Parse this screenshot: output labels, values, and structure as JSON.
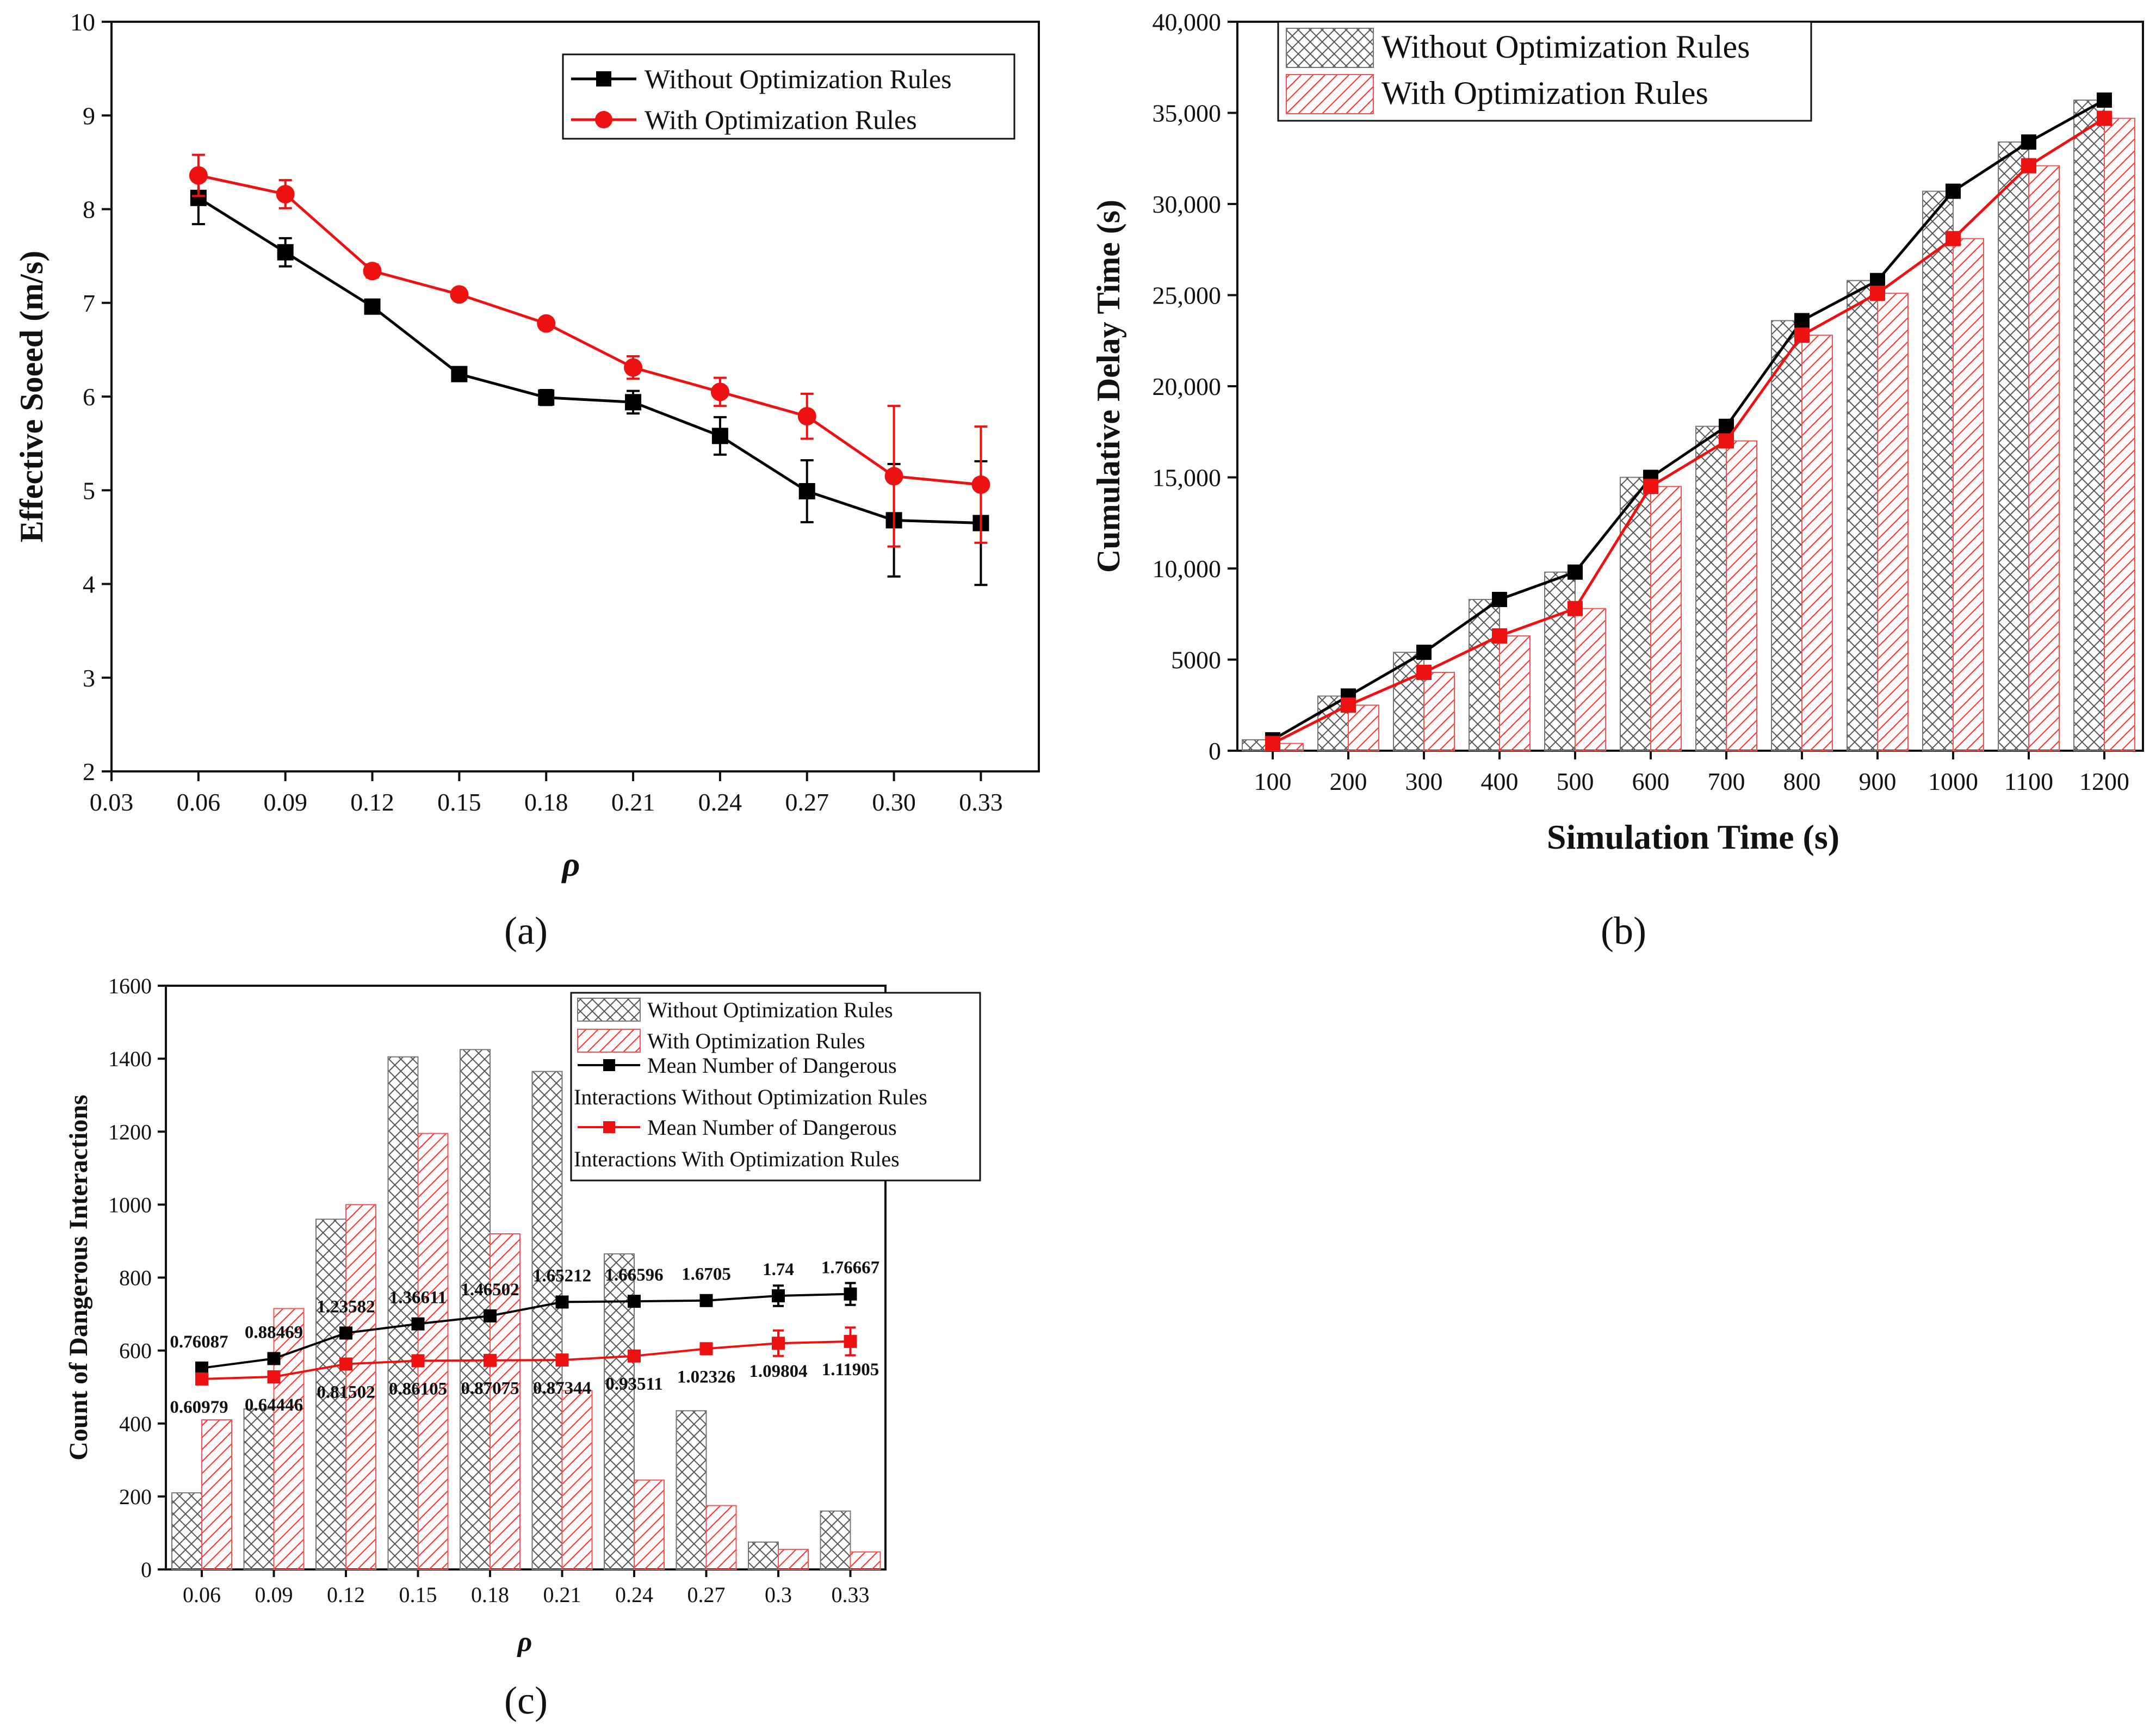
{
  "chart_data": [
    {
      "id": "a",
      "type": "line",
      "caption": "(a)",
      "xlabel": "ρ",
      "ylabel": "Effective Soeed (m/s)",
      "xlim": [
        0.03,
        0.35
      ],
      "ylim": [
        2,
        10
      ],
      "x_ticks": [
        "0.03",
        "0.06",
        "0.09",
        "0.12",
        "0.15",
        "0.18",
        "0.21",
        "0.24",
        "0.27",
        "0.30",
        "0.33"
      ],
      "y_ticks": [
        "2",
        "3",
        "4",
        "5",
        "6",
        "7",
        "8",
        "9",
        "10"
      ],
      "legend_position": "top-right",
      "x": [
        0.06,
        0.09,
        0.12,
        0.15,
        0.18,
        0.21,
        0.24,
        0.27,
        0.3,
        0.33
      ],
      "series": [
        {
          "name": "Without Optimization Rules",
          "color": "#000000",
          "marker": "square",
          "values": [
            8.12,
            7.54,
            6.96,
            6.24,
            5.99,
            5.94,
            5.58,
            4.99,
            4.68,
            4.65
          ],
          "errors": [
            0.28,
            0.15,
            0.05,
            0.07,
            0.08,
            0.12,
            0.2,
            0.33,
            0.6,
            0.66
          ]
        },
        {
          "name": "With Optimization Rules",
          "color": "#ee1111",
          "marker": "circle",
          "values": [
            8.36,
            8.16,
            7.34,
            7.09,
            6.78,
            6.31,
            6.05,
            5.79,
            5.15,
            5.06
          ],
          "errors": [
            0.22,
            0.15,
            0.07,
            0.05,
            0.06,
            0.12,
            0.15,
            0.24,
            0.75,
            0.62
          ]
        }
      ]
    },
    {
      "id": "b",
      "type": "bar",
      "caption": "(b)",
      "xlabel": "Simulation Time (s)",
      "ylabel": "Cumulative Delay Time (s)",
      "ylim": [
        0,
        40000
      ],
      "y_ticks": [
        "0",
        "5000",
        "10,000",
        "15,000",
        "20,000",
        "25,000",
        "30,000",
        "35,000",
        "40,000"
      ],
      "legend_position": "top-left",
      "categories": [
        "100",
        "200",
        "300",
        "400",
        "500",
        "600",
        "700",
        "800",
        "900",
        "1000",
        "1100",
        "1200"
      ],
      "series": [
        {
          "name": "Without Optimization Rules",
          "color": "#555555",
          "pattern": "crosshatch",
          "values": [
            600,
            3000,
            5400,
            8300,
            9800,
            15000,
            17800,
            23600,
            25800,
            30700,
            33400,
            35700
          ]
        },
        {
          "name": "With Optimization Rules",
          "color": "#ee3333",
          "pattern": "diagonal",
          "values": [
            400,
            2500,
            4300,
            6300,
            7800,
            14500,
            17000,
            22800,
            25100,
            28100,
            32100,
            34700
          ]
        }
      ],
      "lines": [
        {
          "color": "#000000",
          "values": [
            600,
            3000,
            5400,
            8300,
            9800,
            15000,
            17800,
            23600,
            25800,
            30700,
            33400,
            35700
          ]
        },
        {
          "color": "#ee1111",
          "values": [
            400,
            2500,
            4300,
            6300,
            7800,
            14500,
            17000,
            22800,
            25100,
            28100,
            32100,
            34700
          ]
        }
      ]
    },
    {
      "id": "c",
      "type": "bar",
      "caption": "(c)",
      "xlabel": "ρ",
      "ylabel": "Count of Dangerous Interactions",
      "ylim": [
        0,
        1600
      ],
      "y_ticks": [
        "0",
        "200",
        "400",
        "600",
        "800",
        "1000",
        "1200",
        "1400",
        "1600"
      ],
      "legend_position": "top-right",
      "categories": [
        "0.06",
        "0.09",
        "0.12",
        "0.15",
        "0.18",
        "0.21",
        "0.24",
        "0.27",
        "0.3",
        "0.33"
      ],
      "series": [
        {
          "name": "Without Optimization Rules",
          "color": "#555555",
          "pattern": "crosshatch",
          "values": [
            210,
            440,
            960,
            1405,
            1425,
            1365,
            865,
            435,
            75,
            160
          ]
        },
        {
          "name": "With Optimization Rules",
          "color": "#ee3333",
          "pattern": "diagonal",
          "values": [
            410,
            715,
            1000,
            1195,
            920,
            490,
            245,
            175,
            55,
            48
          ]
        }
      ],
      "lines": [
        {
          "name": "Mean Number of Dangerous Interactions Without Optimization Rules",
          "color": "#000000",
          "values": [
            552,
            578,
            648,
            673,
            695,
            733,
            735,
            737,
            750,
            755
          ],
          "errors": [
            12,
            10,
            10,
            10,
            10,
            12,
            12,
            12,
            28,
            30
          ],
          "labels": [
            "0.76087",
            "0.88469",
            "1.23582",
            "1.36611",
            "1.46502",
            "1.65212",
            "1.66596",
            "1.6705",
            "1.74",
            "1.76667"
          ]
        },
        {
          "name": "Mean Number of Dangerous Interactions With Optimization Rules",
          "color": "#ee1111",
          "values": [
            522,
            528,
            563,
            572,
            573,
            574,
            585,
            605,
            620,
            625
          ],
          "errors": [
            10,
            8,
            10,
            8,
            8,
            8,
            8,
            12,
            35,
            38
          ],
          "labels": [
            "0.60979",
            "0.64446",
            "0.81502",
            "0.86105",
            "0.87075",
            "0.87344",
            "0.93511",
            "1.02326",
            "1.09804",
            "1.11905"
          ]
        }
      ],
      "legend_labels": [
        "Without Optimization Rules",
        "With Optimization Rules",
        "Mean Number of Dangerous",
        "Interactions Without Optimization Rules",
        "Mean Number of Dangerous",
        "Interactions With Optimization Rules"
      ]
    }
  ]
}
